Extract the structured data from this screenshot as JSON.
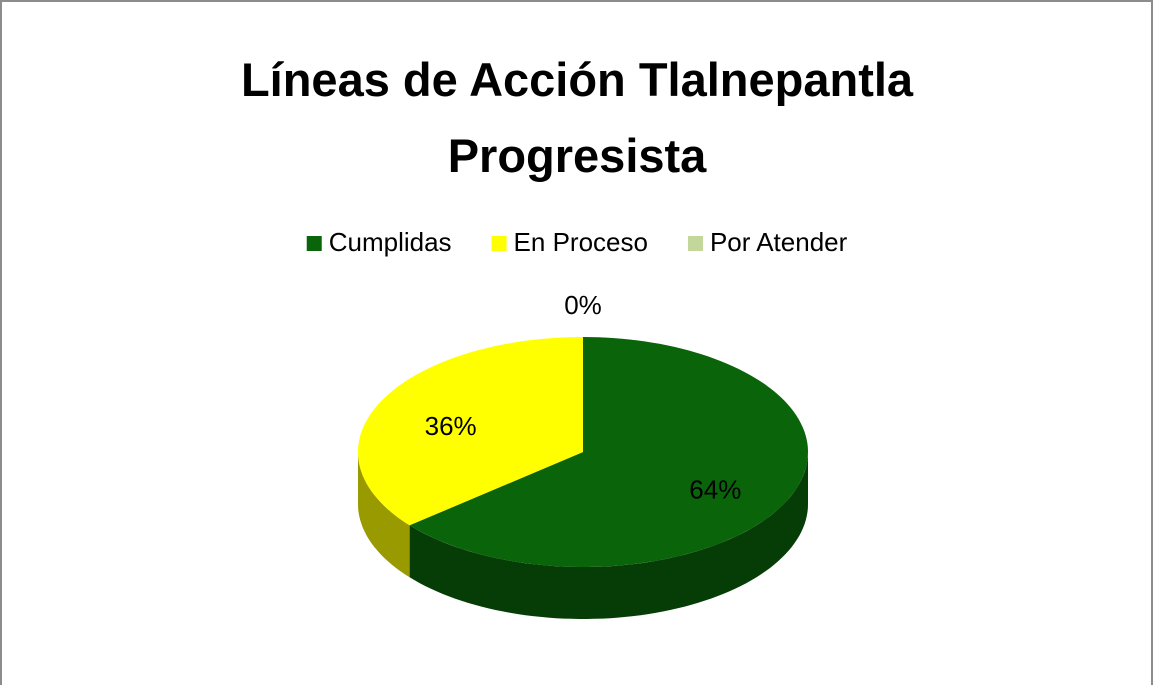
{
  "chart_data": {
    "type": "pie3d",
    "title": "Líneas de Acción Tlalnepantla Progresista",
    "categories": [
      "Cumplidas",
      "En Proceso",
      "Por Atender"
    ],
    "values": [
      64,
      36,
      0
    ],
    "value_labels": [
      "64%",
      "36%",
      "0%"
    ],
    "colors": [
      "#0a640a",
      "#ffff00",
      "#c4d79b"
    ],
    "legend": "top"
  }
}
